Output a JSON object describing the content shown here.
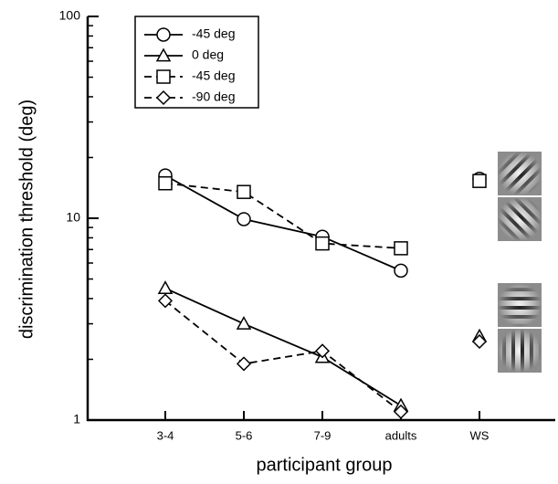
{
  "chart_data": {
    "type": "line",
    "x_label": "participant group",
    "y_label": "discrimination threshold (deg)",
    "categories": [
      "3-4",
      "5-6",
      "7-9",
      "adults",
      "WS"
    ],
    "connect_last": false,
    "log_y": true,
    "ylim": [
      1,
      100
    ],
    "yticks": [
      1,
      10,
      100
    ],
    "yminorticks": [
      2,
      3,
      4,
      5,
      6,
      7,
      8,
      9,
      20,
      30,
      40,
      50,
      60,
      70,
      80,
      90
    ],
    "series": [
      {
        "name": "-45 deg",
        "color": "#000000",
        "marker": "circle",
        "dashed": false,
        "values": [
          16.3,
          9.9,
          8.1,
          5.5,
          15.7
        ]
      },
      {
        "name": "0 deg",
        "color": "#000000",
        "marker": "triangle",
        "dashed": false,
        "values": [
          4.5,
          3.0,
          2.05,
          1.18,
          2.6
        ]
      },
      {
        "name": "-45 deg",
        "color": "#000000",
        "marker": "square",
        "dashed": true,
        "values": [
          14.9,
          13.5,
          7.5,
          7.1,
          15.3
        ]
      },
      {
        "name": "-90 deg",
        "color": "#000000",
        "marker": "diamond",
        "dashed": true,
        "values": [
          3.9,
          1.9,
          2.2,
          1.1,
          2.45
        ]
      }
    ]
  }
}
